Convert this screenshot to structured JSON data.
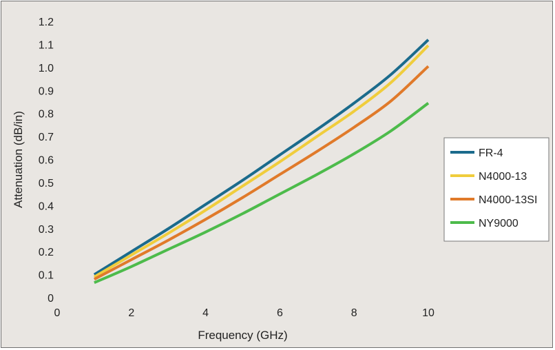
{
  "chart_data": {
    "type": "line",
    "title": "",
    "xlabel": "Frequency (GHz)",
    "ylabel": "Attenuation (dB/in)",
    "xlim": [
      0,
      10
    ],
    "ylim": [
      0,
      1.2
    ],
    "x_ticks": [
      "0",
      "2",
      "4",
      "6",
      "8",
      "10"
    ],
    "y_ticks": [
      "0",
      "0.1",
      "0.2",
      "0.3",
      "0.4",
      "0.5",
      "0.6",
      "0.7",
      "0.8",
      "0.9",
      "1.0",
      "1.1",
      "1.2"
    ],
    "grid": false,
    "legend_position": "right",
    "x": [
      1,
      2,
      3,
      4,
      5,
      6,
      7,
      8,
      9,
      10
    ],
    "series": [
      {
        "name": "FR-4",
        "color": "#1b6b8c",
        "values": [
          0.1,
          0.2,
          0.3,
          0.405,
          0.51,
          0.62,
          0.73,
          0.845,
          0.97,
          1.12
        ]
      },
      {
        "name": "N4000-13",
        "color": "#f0cd3c",
        "values": [
          0.09,
          0.185,
          0.28,
          0.38,
          0.485,
          0.59,
          0.7,
          0.81,
          0.935,
          1.095
        ]
      },
      {
        "name": "N4000-13SI",
        "color": "#e07a2a",
        "values": [
          0.08,
          0.165,
          0.25,
          0.34,
          0.435,
          0.535,
          0.635,
          0.74,
          0.855,
          1.005
        ]
      },
      {
        "name": "NY9000",
        "color": "#4dbb4b",
        "values": [
          0.065,
          0.135,
          0.21,
          0.285,
          0.365,
          0.45,
          0.535,
          0.625,
          0.725,
          0.845
        ]
      }
    ]
  }
}
